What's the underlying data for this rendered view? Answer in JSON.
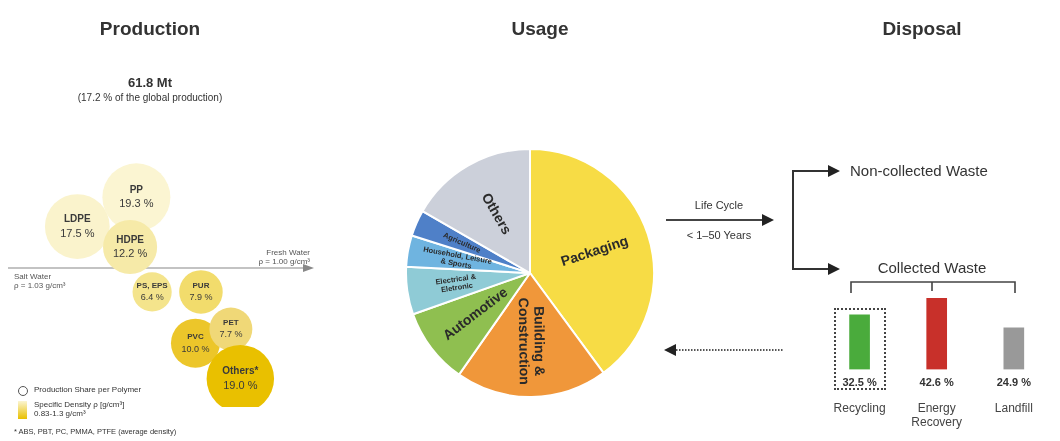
{
  "chart_data": [
    {
      "type": "other",
      "title": "Production",
      "subtitle": "61.8 Mt",
      "categories": [
        "LDPE",
        "PP",
        "HDPE",
        "PS, EPS",
        "PUR",
        "PVC",
        "PET",
        "Others*"
      ],
      "values": [
        17.5,
        19.3,
        12.2,
        6.4,
        7.9,
        10.0,
        7.7,
        19.0
      ],
      "value_labels": [
        "17.5 %",
        "19.3 %",
        "12.2 %",
        "6.4 %",
        "7.9 %",
        "10.0 %",
        "7.7 %",
        "19.0 %"
      ],
      "colors": [
        "#faf3cc",
        "#fbf5d2",
        "#f6eaa8",
        "#f4e48c",
        "#f2dc6c",
        "#ecc62a",
        "#f0d877",
        "#e9c000"
      ],
      "annotations": [
        "(17.2 % of the global production)",
        "Production Share per Polymer",
        "Specific Density ρ [g/cm³]\n0.83-1.3 g/cm³",
        "* ABS, PBT, PC, PMMA, PTFE (average density)",
        "Fresh Water\nρ = 1.00 g/cm³",
        "Salt Water\nρ = 1.03 g/cm³"
      ]
    },
    {
      "type": "pie",
      "title": "Usage",
      "categories": [
        "Packaging",
        "Building &\nConstruction",
        "Automotive",
        "Electrical &\nEletronic",
        "Household, Leisure\n& Sports",
        "Agriculture",
        "Others"
      ],
      "values": [
        39.9,
        19.8,
        9.9,
        6.2,
        4.1,
        3.4,
        16.7
      ],
      "colors": [
        "#f7dc45",
        "#f0973a",
        "#8fbf50",
        "#8fcbd6",
        "#6fb4e0",
        "#4f80c8",
        "#ccd0da"
      ]
    },
    {
      "type": "bar",
      "title": "Disposal",
      "categories": [
        "Recycling",
        "Energy\nRecovery",
        "Landfill"
      ],
      "values": [
        32.5,
        42.6,
        24.9
      ],
      "value_labels": [
        "32.5 %",
        "42.6 %",
        "24.9 %"
      ],
      "colors": [
        "#4aab3c",
        "#c8302a",
        "#999999"
      ],
      "annotations": [
        "Life Cycle",
        "< 1–50 Years",
        "Non-collected Waste",
        "Collected Waste"
      ]
    }
  ]
}
